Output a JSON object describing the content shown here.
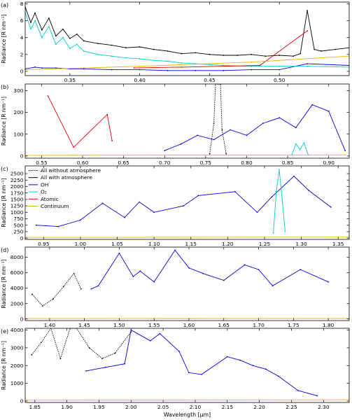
{
  "figure": {
    "xlabel": "Wavelength [µm]",
    "ylabel": "Radiance [R nm⁻¹]"
  },
  "legend": [
    {
      "key": "all_without",
      "label": "All without atmosphere",
      "color": "#000000",
      "dash": true
    },
    {
      "key": "all_with",
      "label": "All with atmosphere",
      "color": "#000000",
      "dash": false
    },
    {
      "key": "oh",
      "label": "OH",
      "color": "#0000dd",
      "dash": false
    },
    {
      "key": "o2",
      "label": "O₂",
      "color": "#00cccc",
      "dash": false
    },
    {
      "key": "atomic",
      "label": "Atomic",
      "color": "#dd0000",
      "dash": false
    },
    {
      "key": "continuum",
      "label": "Continuum",
      "color": "#e8b400",
      "dash": false
    }
  ],
  "chart_data": [
    {
      "panel": "(a)",
      "type": "line",
      "xlim": [
        0.318,
        0.55
      ],
      "ylim": [
        -0.5,
        8.2
      ],
      "xticks": [
        "0.35",
        "0.40",
        "0.45",
        "0.50"
      ],
      "xtick_values": [
        0.35,
        0.4,
        0.45,
        0.5
      ],
      "yticks": [
        "0",
        "2",
        "4",
        "6",
        "8"
      ],
      "ytick_values": [
        0,
        2,
        4,
        6,
        8
      ],
      "ylabel": "Radiance [R nm⁻¹]",
      "series": [
        {
          "key": "all_with",
          "x": [
            0.318,
            0.322,
            0.325,
            0.33,
            0.335,
            0.34,
            0.345,
            0.35,
            0.355,
            0.36,
            0.37,
            0.38,
            0.39,
            0.4,
            0.41,
            0.42,
            0.43,
            0.44,
            0.45,
            0.46,
            0.47,
            0.48,
            0.49,
            0.5,
            0.51,
            0.515,
            0.52,
            0.525,
            0.53,
            0.54,
            0.55
          ],
          "y": [
            7.6,
            5.8,
            6.9,
            4.9,
            6.3,
            4.2,
            5.0,
            3.9,
            4.4,
            3.6,
            3.3,
            3.1,
            2.8,
            2.9,
            2.6,
            2.4,
            2.1,
            2.2,
            2.0,
            1.9,
            1.9,
            2.0,
            1.8,
            1.9,
            1.8,
            2.1,
            7.2,
            2.6,
            2.4,
            2.6,
            2.8
          ]
        },
        {
          "key": "oh",
          "x": [
            0.318,
            0.325,
            0.33,
            0.34,
            0.35,
            0.36,
            0.38,
            0.4,
            0.42,
            0.44,
            0.46,
            0.48,
            0.5,
            0.52,
            0.55
          ],
          "y": [
            0.3,
            0.5,
            0.4,
            0.4,
            0.3,
            0.3,
            0.2,
            0.2,
            0.1,
            0.1,
            0.1,
            0.2,
            0.2,
            0.9,
            0.7
          ]
        },
        {
          "key": "o2",
          "x": [
            0.318,
            0.322,
            0.325,
            0.33,
            0.335,
            0.34,
            0.345,
            0.35,
            0.355,
            0.36,
            0.37,
            0.38,
            0.39,
            0.4,
            0.41,
            0.42,
            0.43,
            0.44,
            0.45,
            0.46,
            0.48,
            0.5,
            0.52,
            0.55
          ],
          "y": [
            7.0,
            5.0,
            6.0,
            4.0,
            5.3,
            3.2,
            4.0,
            2.7,
            3.2,
            2.4,
            2.0,
            1.8,
            1.6,
            1.5,
            1.3,
            1.2,
            1.0,
            0.9,
            0.8,
            0.7,
            0.6,
            0.6,
            0.6,
            0.5
          ]
        },
        {
          "key": "atomic",
          "x": [
            0.396,
            0.43,
            0.486,
            0.52
          ],
          "y": [
            0.4,
            0.5,
            0.7,
            4.8
          ]
        },
        {
          "key": "continuum",
          "x": [
            0.318,
            0.4,
            0.48,
            0.55
          ],
          "y": [
            0.2,
            0.6,
            1.1,
            1.8
          ]
        }
      ]
    },
    {
      "panel": "(b)",
      "type": "line",
      "xlim": [
        0.53,
        0.925
      ],
      "ylim": [
        -10,
        330
      ],
      "xticks": [
        "0.55",
        "0.60",
        "0.65",
        "0.70",
        "0.75",
        "0.80",
        "0.85",
        "0.90"
      ],
      "xtick_values": [
        0.55,
        0.6,
        0.65,
        0.7,
        0.75,
        0.8,
        0.85,
        0.9
      ],
      "yticks": [
        "0",
        "100",
        "200",
        "300"
      ],
      "ytick_values": [
        0,
        100,
        200,
        300
      ],
      "ylabel": "Radiance [R nm⁻¹]",
      "series": [
        {
          "key": "all_without",
          "x": [
            0.755,
            0.76,
            0.762,
            0.765,
            0.768,
            0.77,
            0.775
          ],
          "y": [
            10,
            150,
            330,
            330,
            330,
            120,
            10
          ]
        },
        {
          "key": "atomic",
          "x": [
            0.5577,
            0.589,
            0.63,
            0.636
          ],
          "y": [
            275,
            40,
            190,
            70
          ]
        },
        {
          "key": "oh",
          "x": [
            0.7,
            0.72,
            0.74,
            0.76,
            0.78,
            0.8,
            0.82,
            0.84,
            0.86,
            0.88,
            0.9,
            0.92
          ],
          "y": [
            25,
            55,
            95,
            75,
            120,
            95,
            150,
            175,
            130,
            235,
            205,
            25
          ]
        },
        {
          "key": "o2",
          "x": [
            0.855,
            0.86,
            0.865,
            0.87,
            0.875
          ],
          "y": [
            5,
            55,
            30,
            60,
            5
          ]
        },
        {
          "key": "continuum",
          "x": [
            0.53,
            0.7,
            0.92
          ],
          "y": [
            3,
            4,
            5
          ]
        }
      ]
    },
    {
      "panel": "(c)",
      "type": "line",
      "xlim": [
        0.925,
        1.365
      ],
      "ylim": [
        -50,
        2800
      ],
      "xticks": [
        "0.95",
        "1.00",
        "1.05",
        "1.10",
        "1.15",
        "1.20",
        "1.25",
        "1.30",
        "1.35"
      ],
      "xtick_values": [
        0.95,
        1.0,
        1.05,
        1.1,
        1.15,
        1.2,
        1.25,
        1.3,
        1.35
      ],
      "yticks": [
        "0",
        "250",
        "500",
        "750",
        "1000",
        "1250",
        "1500",
        "1750",
        "2000",
        "2250",
        "2500"
      ],
      "ytick_values": [
        0,
        250,
        500,
        750,
        1000,
        1250,
        1500,
        1750,
        2000,
        2250,
        2500
      ],
      "ylabel": "Radiance [R nm⁻¹]",
      "series": [
        {
          "key": "oh",
          "x": [
            0.94,
            0.97,
            1.0,
            1.03,
            1.06,
            1.08,
            1.1,
            1.14,
            1.16,
            1.21,
            1.24,
            1.26,
            1.29,
            1.31,
            1.34
          ],
          "y": [
            500,
            450,
            700,
            1350,
            800,
            1400,
            1000,
            1250,
            1650,
            1800,
            1000,
            1600,
            2400,
            1850,
            1200
          ]
        },
        {
          "key": "o2",
          "x": [
            1.262,
            1.266,
            1.27,
            1.274,
            1.278
          ],
          "y": [
            200,
            1800,
            2650,
            1500,
            250
          ]
        },
        {
          "key": "continuum",
          "x": [
            0.925,
            1.365
          ],
          "y": [
            30,
            40
          ]
        }
      ]
    },
    {
      "panel": "(d)",
      "type": "line",
      "xlim": [
        1.365,
        1.83
      ],
      "ylim": [
        -200,
        9300
      ],
      "xticks": [
        "1.40",
        "1.45",
        "1.50",
        "1.55",
        "1.60",
        "1.65",
        "1.70",
        "1.75",
        "1.80"
      ],
      "xtick_values": [
        1.4,
        1.45,
        1.5,
        1.55,
        1.6,
        1.65,
        1.7,
        1.75,
        1.8
      ],
      "yticks": [
        "0",
        "2000",
        "4000",
        "6000",
        "8000"
      ],
      "ytick_values": [
        0,
        2000,
        4000,
        6000,
        8000
      ],
      "ylabel": "Radiance [R nm⁻¹]",
      "series": [
        {
          "key": "all_without",
          "x": [
            1.375,
            1.39,
            1.405,
            1.42,
            1.435,
            1.445
          ],
          "y": [
            3200,
            1700,
            2600,
            4200,
            5900,
            3900
          ]
        },
        {
          "key": "oh",
          "x": [
            1.46,
            1.47,
            1.5,
            1.52,
            1.53,
            1.55,
            1.58,
            1.6,
            1.62,
            1.65,
            1.68,
            1.7,
            1.72,
            1.76,
            1.8
          ],
          "y": [
            3900,
            4300,
            8500,
            5500,
            6200,
            4800,
            8900,
            6600,
            5900,
            5000,
            7000,
            6400,
            4300,
            6400,
            4800
          ]
        },
        {
          "key": "continuum",
          "x": [
            1.365,
            1.83
          ],
          "y": [
            60,
            80
          ]
        }
      ]
    },
    {
      "panel": "(e)",
      "type": "line",
      "xlim": [
        1.835,
        2.34
      ],
      "ylim": [
        -80,
        4100
      ],
      "xticks": [
        "1.85",
        "1.90",
        "1.95",
        "2.00",
        "2.05",
        "2.10",
        "2.15",
        "2.20",
        "2.25",
        "2.30"
      ],
      "xtick_values": [
        1.85,
        1.9,
        1.95,
        2.0,
        2.05,
        2.1,
        2.15,
        2.2,
        2.25,
        2.3
      ],
      "yticks": [
        "0",
        "1000",
        "2000",
        "3000",
        "4000"
      ],
      "ytick_values": [
        0,
        1000,
        2000,
        3000,
        4000
      ],
      "ylabel": "Radiance [R nm⁻¹]",
      "series": [
        {
          "key": "all_without",
          "x": [
            1.845,
            1.86,
            1.875,
            1.89,
            1.905,
            1.915,
            1.935,
            1.955,
            1.975,
            2.0
          ],
          "y": [
            2600,
            3300,
            4100,
            2400,
            4100,
            4100,
            3000,
            2400,
            2700,
            3900
          ]
        },
        {
          "key": "oh",
          "x": [
            1.93,
            1.96,
            1.99,
            2.0,
            2.03,
            2.045,
            2.075,
            2.09,
            2.11,
            2.15,
            2.17,
            2.19,
            2.21,
            2.23,
            2.26,
            2.29
          ],
          "y": [
            1700,
            1900,
            2100,
            4000,
            3400,
            3800,
            2800,
            1600,
            1500,
            2500,
            2300,
            2000,
            1800,
            1400,
            600,
            300
          ]
        },
        {
          "key": "continuum",
          "x": [
            1.835,
            2.34
          ],
          "y": [
            50,
            70
          ]
        }
      ]
    }
  ]
}
